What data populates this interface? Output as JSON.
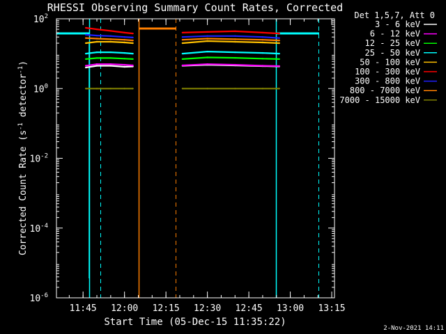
{
  "chart_data": {
    "type": "line",
    "title": "RHESSI Observing Summary Count Rates, Corrected",
    "xlabel": "Start Time (05-Dec-15 11:35:22)",
    "ylabel": "Corrected Count Rate (s⁻¹ detector⁻¹)",
    "ylabel_main": "Corrected Count Rate (s",
    "ylabel_sup1": "-1",
    "ylabel_mid": " detector",
    "ylabel_sup2": "-1",
    "ylabel_end": ")",
    "y_scale": "log",
    "ylim": [
      1e-06,
      100
    ],
    "yticks": [
      {
        "value": 1e-06,
        "base": "10",
        "exp": "-6"
      },
      {
        "value": 0.0001,
        "base": "10",
        "exp": "-4"
      },
      {
        "value": 0.01,
        "base": "10",
        "exp": "-2"
      },
      {
        "value": 1,
        "base": "10",
        "exp": "0"
      },
      {
        "value": 100,
        "base": "10",
        "exp": "2"
      }
    ],
    "xlim": [
      "11:35:22",
      "13:16:00"
    ],
    "xticks": [
      "11:45",
      "12:00",
      "12:15",
      "12:30",
      "12:45",
      "13:00",
      "13:15"
    ],
    "legend_title": "Det 1,5,7, Att 0",
    "legend_placement": "right",
    "series": [
      {
        "name": "3 - 6 keV",
        "color": "#ffffff",
        "x": [
          "11:46",
          "11:50",
          "11:55",
          "12:00",
          "12:03",
          "12:21",
          "12:30",
          "12:40",
          "12:50",
          "12:56"
        ],
        "y": [
          4.0,
          4.5,
          4.5,
          4.2,
          4.3,
          4.5,
          4.8,
          4.6,
          4.4,
          4.3
        ]
      },
      {
        "name": "6 - 12 keV",
        "color": "#ff00ff",
        "x": [
          "11:46",
          "11:50",
          "11:55",
          "12:00",
          "12:03",
          "12:21",
          "12:30",
          "12:40",
          "12:50",
          "12:56"
        ],
        "y": [
          4.5,
          5.0,
          5.0,
          4.8,
          4.6,
          4.6,
          5.0,
          4.8,
          4.5,
          4.4
        ]
      },
      {
        "name": "12 - 25 keV",
        "color": "#00ff00",
        "x": [
          "11:46",
          "11:50",
          "11:55",
          "12:00",
          "12:03",
          "12:21",
          "12:30",
          "12:40",
          "12:50",
          "12:56"
        ],
        "y": [
          7,
          7.5,
          7.5,
          7.2,
          7,
          7,
          7.8,
          7.6,
          7.2,
          7
        ]
      },
      {
        "name": "25 - 50 keV",
        "color": "#00ffff",
        "x": [
          "11:46",
          "11:50",
          "11:55",
          "12:00",
          "12:03",
          "12:21",
          "12:30",
          "12:40",
          "12:50",
          "12:56"
        ],
        "y": [
          10,
          11,
          11,
          10.5,
          10,
          10,
          11.5,
          11,
          10.5,
          10
        ]
      },
      {
        "name": "50 - 100 keV",
        "color": "#ffc000",
        "x": [
          "11:46",
          "11:50",
          "11:55",
          "12:00",
          "12:03",
          "12:21",
          "12:30",
          "12:40",
          "12:50",
          "12:56"
        ],
        "y": [
          20,
          22,
          22,
          21,
          20,
          20,
          23,
          22,
          21,
          20
        ]
      },
      {
        "name": "100 - 300 keV",
        "color": "#ff0000",
        "x": [
          "11:46",
          "11:50",
          "11:55",
          "12:00",
          "12:03",
          "12:21",
          "12:30",
          "12:40",
          "12:50",
          "12:56"
        ],
        "y": [
          55,
          50,
          45,
          40,
          38,
          40,
          42,
          44,
          40,
          38
        ]
      },
      {
        "name": "300 - 800 keV",
        "color": "#2020ff",
        "x": [
          "11:46",
          "11:50",
          "11:55",
          "12:00",
          "12:03",
          "12:21",
          "12:30",
          "12:40",
          "12:50",
          "12:56"
        ],
        "y": [
          35,
          33,
          32,
          30,
          29,
          30,
          32,
          32,
          30,
          28
        ]
      },
      {
        "name": "800 - 7000 keV",
        "color": "#ff7f00",
        "x": [
          "11:46",
          "11:50",
          "11:55",
          "12:00",
          "12:03",
          "12:21",
          "12:30",
          "12:40",
          "12:50",
          "12:56"
        ],
        "y": [
          28,
          27,
          26,
          25,
          24,
          25,
          27,
          26,
          25,
          24
        ]
      },
      {
        "name": "7000 - 15000 keV",
        "color": "#808000",
        "x": [
          "11:46",
          "11:50",
          "11:55",
          "12:00",
          "12:03",
          "12:21",
          "12:30",
          "12:40",
          "12:50",
          "12:56"
        ],
        "y": [
          1,
          1,
          1,
          1,
          1,
          1,
          1,
          1,
          1,
          1
        ]
      }
    ]
  },
  "footer": {
    "timestamp": "2-Nov-2021 14:11"
  }
}
